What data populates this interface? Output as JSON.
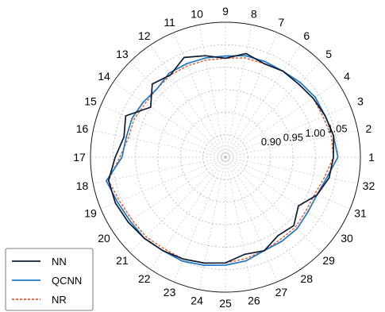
{
  "chart_data": {
    "type": "polar-line",
    "title": "",
    "angular_axis": {
      "categories": [
        "1",
        "2",
        "3",
        "4",
        "5",
        "6",
        "7",
        "8",
        "9",
        "10",
        "11",
        "12",
        "13",
        "14",
        "15",
        "16",
        "17",
        "18",
        "19",
        "20",
        "21",
        "22",
        "23",
        "24",
        "25",
        "26",
        "27",
        "28",
        "29",
        "30",
        "31",
        "32"
      ],
      "start": "right",
      "direction": "counterclockwise"
    },
    "radial_axis": {
      "range": [
        0.8,
        1.1
      ],
      "grid": [
        0.85,
        0.9,
        0.95,
        1.0,
        1.05,
        1.1
      ],
      "tick_labels": [
        "0.90",
        "0.95",
        "1.00",
        "1.05"
      ],
      "tick_values": [
        0.9,
        0.95,
        1.0,
        1.05
      ],
      "label_angle_category": "2"
    },
    "grid": true,
    "legend": {
      "position": "bottom-left"
    },
    "series": [
      {
        "name": "NN",
        "color": "#0d1b33",
        "dash": "solid",
        "values": [
          1.04,
          1.045,
          1.04,
          1.035,
          1.03,
          1.03,
          1.025,
          1.035,
          1.02,
          1.03,
          1.04,
          1.02,
          1.03,
          1.0,
          1.04,
          1.03,
          1.045,
          1.065,
          1.065,
          1.06,
          1.055,
          1.05,
          1.045,
          1.04,
          1.035,
          1.02,
          1.025,
          1.01,
          1.015,
          0.995,
          1.02,
          1.035
        ]
      },
      {
        "name": "QCNN",
        "color": "#1f77c4",
        "dash": "solid",
        "values": [
          1.05,
          1.045,
          1.04,
          1.04,
          1.035,
          1.03,
          1.03,
          1.03,
          1.025,
          1.025,
          1.025,
          1.025,
          1.015,
          1.02,
          1.025,
          1.025,
          1.03,
          1.07,
          1.06,
          1.055,
          1.055,
          1.05,
          1.05,
          1.045,
          1.04,
          1.035,
          1.025,
          1.025,
          1.025,
          1.02,
          1.02,
          1.03
        ]
      },
      {
        "name": "NR",
        "color": "#e8562a",
        "dash": "dashed",
        "values": [
          1.04,
          1.04,
          1.035,
          1.035,
          1.03,
          1.03,
          1.025,
          1.025,
          1.02,
          1.02,
          1.02,
          1.02,
          1.015,
          1.015,
          1.02,
          1.02,
          1.035,
          1.065,
          1.055,
          1.05,
          1.05,
          1.045,
          1.045,
          1.04,
          1.035,
          1.03,
          1.025,
          1.02,
          1.02,
          1.015,
          1.015,
          1.025
        ]
      }
    ]
  }
}
